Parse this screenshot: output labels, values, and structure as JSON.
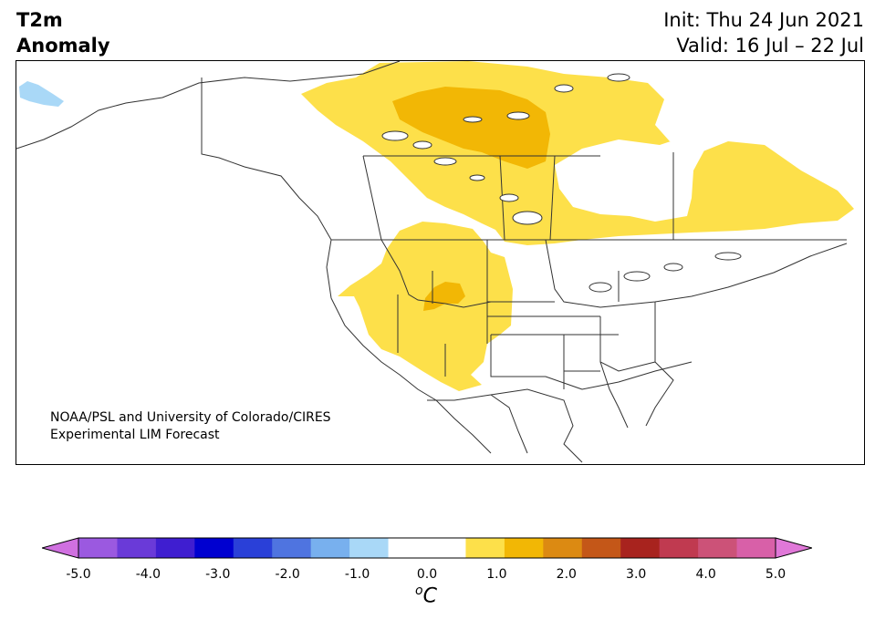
{
  "header": {
    "title_line1": "T2m",
    "title_line2": "Anomaly",
    "init_text": "Init: Thu 24 Jun 2021",
    "valid_text": "Valid: 16 Jul – 22 Jul"
  },
  "credit": {
    "line1": "NOAA/PSL and University of Colorado/CIRES",
    "line2": "Experimental LIM Forecast"
  },
  "colorbar": {
    "units_base": "C",
    "units_sup": "o",
    "ticks": [
      "-5.0",
      "-4.0",
      "-3.0",
      "-2.0",
      "-1.0",
      "0.0",
      "1.0",
      "2.0",
      "3.0",
      "4.0",
      "5.0"
    ],
    "colors": [
      "#d070e0",
      "#9b59e0",
      "#6a3ad8",
      "#3f1ed0",
      "#0000d0",
      "#2a40d8",
      "#4f74e0",
      "#78b0ee",
      "#a9d8f7",
      "#ffffff",
      "#ffffff",
      "#fde04a",
      "#f2b705",
      "#dc8a12",
      "#c45718",
      "#a8231e",
      "#c03a50",
      "#cc5278",
      "#d860a8",
      "#e078d8"
    ]
  },
  "map": {
    "anomaly_colors": {
      "weak_warm": "#fde04a",
      "moderate_warm": "#f2b705",
      "weak_cold": "#a9d8f7"
    }
  }
}
